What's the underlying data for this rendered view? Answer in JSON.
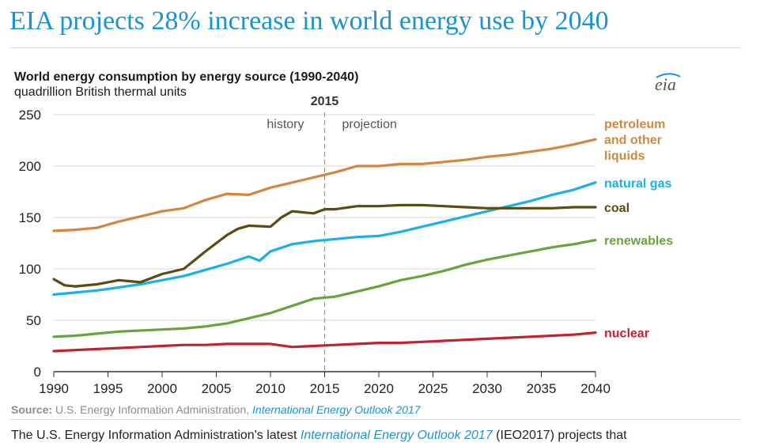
{
  "headline": "EIA projects 28% increase in world energy use by 2040",
  "source": {
    "label": "Source:",
    "text": "U.S. Energy Information Administration,",
    "link": "International Energy Outlook 2017"
  },
  "body": {
    "before": "The U.S. Energy Information Administration's latest",
    "link": "International Energy Outlook 2017",
    "after": "(IEO2017) projects that"
  },
  "logo": "eia",
  "chart_data": {
    "type": "line",
    "title": "World energy consumption by energy source (1990-2040)",
    "subtitle": "quadrillion British thermal units",
    "xlabel": "",
    "ylabel": "",
    "xlim": [
      1990,
      2040
    ],
    "ylim": [
      0,
      250
    ],
    "xticks": [
      1990,
      1995,
      2000,
      2005,
      2010,
      2015,
      2020,
      2025,
      2030,
      2035,
      2040
    ],
    "yticks": [
      0,
      50,
      100,
      150,
      200,
      250
    ],
    "divider_year": 2015,
    "divider_label": "2015",
    "region_left": "history",
    "region_right": "projection",
    "series": [
      {
        "name": "petroleum and other liquids",
        "label_lines": [
          "petroleum",
          "and other",
          "liquids"
        ],
        "color": "#d3863e",
        "x": [
          1990,
          1992,
          1994,
          1996,
          1998,
          2000,
          2002,
          2004,
          2006,
          2008,
          2010,
          2012,
          2014,
          2016,
          2018,
          2020,
          2022,
          2024,
          2026,
          2028,
          2030,
          2032,
          2034,
          2036,
          2038,
          2040
        ],
        "values": [
          137,
          138,
          140,
          146,
          151,
          156,
          159,
          167,
          173,
          172,
          179,
          184,
          189,
          194,
          200,
          200,
          202,
          202,
          204,
          206,
          209,
          211,
          214,
          217,
          221,
          226
        ]
      },
      {
        "name": "natural gas",
        "label_lines": [
          "natural gas"
        ],
        "color": "#1ab0e8",
        "x": [
          1990,
          1992,
          1994,
          1996,
          1998,
          2000,
          2002,
          2004,
          2006,
          2008,
          2009,
          2010,
          2012,
          2014,
          2016,
          2018,
          2020,
          2022,
          2024,
          2026,
          2028,
          2030,
          2032,
          2034,
          2036,
          2038,
          2040
        ],
        "values": [
          75,
          77,
          79,
          82,
          85,
          89,
          93,
          99,
          105,
          112,
          108,
          117,
          124,
          127,
          129,
          131,
          132,
          136,
          141,
          146,
          151,
          156,
          161,
          166,
          172,
          177,
          184
        ]
      },
      {
        "name": "coal",
        "label_lines": [
          "coal"
        ],
        "color": "#5c4a12",
        "x": [
          1990,
          1991,
          1992,
          1994,
          1996,
          1998,
          2000,
          2002,
          2004,
          2006,
          2007,
          2008,
          2010,
          2011,
          2012,
          2014,
          2015,
          2016,
          2018,
          2020,
          2022,
          2023,
          2024,
          2026,
          2028,
          2030,
          2032,
          2034,
          2036,
          2038,
          2040
        ],
        "values": [
          90,
          84,
          83,
          85,
          89,
          87,
          95,
          100,
          117,
          133,
          139,
          142,
          141,
          150,
          156,
          154,
          158,
          158,
          161,
          161,
          162,
          162,
          162,
          161,
          160,
          159,
          159,
          159,
          159,
          160,
          160
        ]
      },
      {
        "name": "renewables",
        "label_lines": [
          "renewables"
        ],
        "color": "#6aa33c",
        "x": [
          1990,
          1992,
          1994,
          1996,
          1998,
          2000,
          2002,
          2004,
          2006,
          2008,
          2010,
          2012,
          2014,
          2016,
          2018,
          2020,
          2022,
          2024,
          2026,
          2028,
          2030,
          2032,
          2034,
          2036,
          2038,
          2040
        ],
        "values": [
          34,
          35,
          37,
          39,
          40,
          41,
          42,
          44,
          47,
          52,
          57,
          64,
          71,
          73,
          78,
          83,
          89,
          93,
          98,
          104,
          109,
          113,
          117,
          121,
          124,
          128
        ]
      },
      {
        "name": "nuclear",
        "label_lines": [
          "nuclear"
        ],
        "color": "#c0222e",
        "x": [
          1990,
          1992,
          1994,
          1996,
          1998,
          2000,
          2002,
          2004,
          2006,
          2008,
          2010,
          2012,
          2014,
          2016,
          2018,
          2020,
          2022,
          2024,
          2026,
          2028,
          2030,
          2032,
          2034,
          2036,
          2038,
          2040
        ],
        "values": [
          20,
          21,
          22,
          23,
          24,
          25,
          26,
          26,
          27,
          27,
          27,
          24,
          25,
          26,
          27,
          28,
          28,
          29,
          30,
          31,
          32,
          33,
          34,
          35,
          36,
          38
        ]
      }
    ]
  }
}
